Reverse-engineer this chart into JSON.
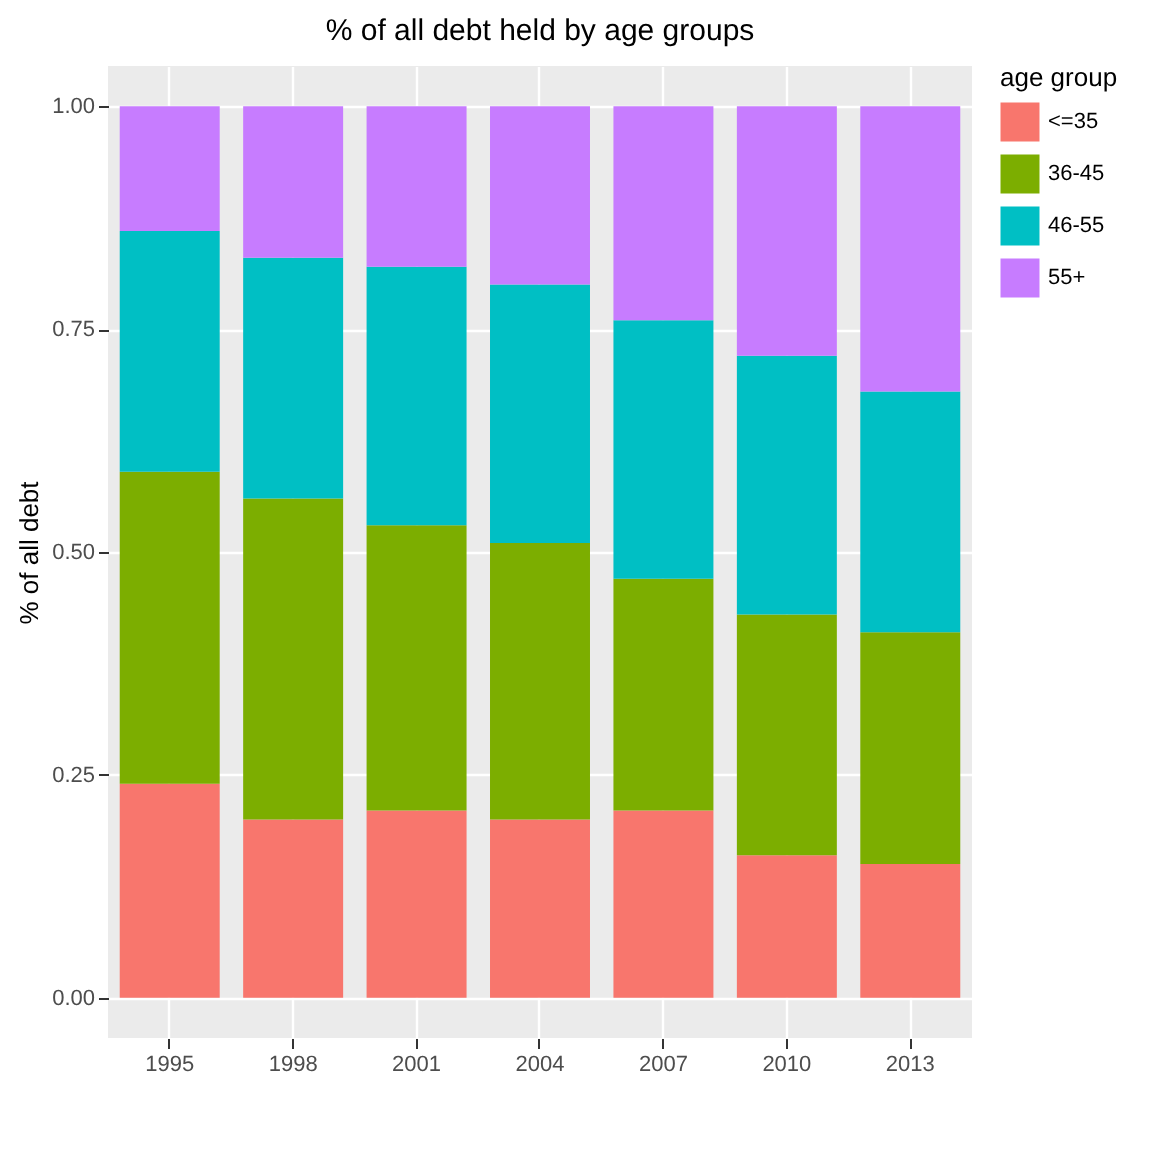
{
  "chart_data": {
    "type": "bar",
    "title": "% of all debt held by age groups",
    "ylabel": "% of all debt",
    "legend_title": "age group",
    "categories": [
      "1995",
      "1998",
      "2001",
      "2004",
      "2007",
      "2010",
      "2013"
    ],
    "series": [
      {
        "name": "<=35",
        "color": "#f8766d",
        "values": [
          0.24,
          0.2,
          0.21,
          0.2,
          0.21,
          0.16,
          0.15
        ]
      },
      {
        "name": "36-45",
        "color": "#7cae00",
        "values": [
          0.35,
          0.36,
          0.32,
          0.31,
          0.26,
          0.27,
          0.26
        ]
      },
      {
        "name": "46-55",
        "color": "#00bfc4",
        "values": [
          0.27,
          0.27,
          0.29,
          0.29,
          0.29,
          0.29,
          0.27
        ]
      },
      {
        "name": "55+",
        "color": "#c77cff",
        "values": [
          0.14,
          0.17,
          0.18,
          0.2,
          0.24,
          0.28,
          0.32
        ]
      }
    ],
    "stacked": true,
    "ylim": [
      -0.045,
      1.045
    ],
    "yticks": [
      {
        "value": 0,
        "label": "0.00"
      },
      {
        "value": 0.25,
        "label": "0.25"
      },
      {
        "value": 0.5,
        "label": "0.50"
      },
      {
        "value": 0.75,
        "label": "0.75"
      },
      {
        "value": 1,
        "label": "1.00"
      }
    ],
    "grid": true,
    "legend": "right"
  }
}
